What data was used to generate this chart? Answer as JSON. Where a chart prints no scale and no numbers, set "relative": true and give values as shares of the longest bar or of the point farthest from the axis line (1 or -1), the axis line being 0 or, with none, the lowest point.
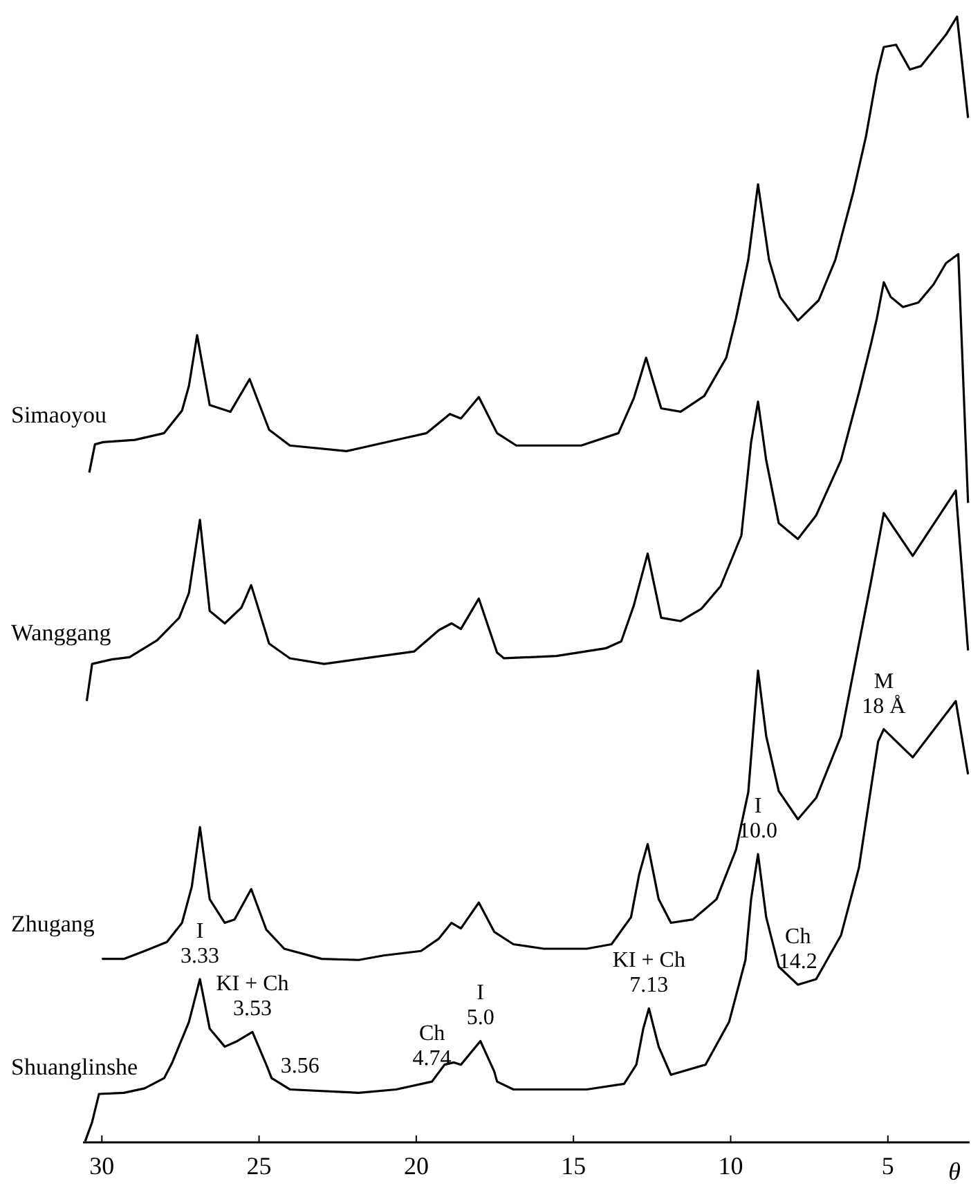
{
  "chart_data": {
    "type": "line",
    "relative": true,
    "xlabel": "θ",
    "xlim": [
      30.6,
      2.4
    ],
    "xticks": [
      30,
      25,
      20,
      15,
      10,
      5
    ],
    "series": [
      {
        "name": "Simaoyou",
        "color": "#000000",
        "x": [
          30.4,
          30.22,
          29.96,
          28.95,
          28.02,
          27.45,
          27.23,
          26.97,
          26.57,
          25.91,
          25.3,
          24.68,
          24.02,
          22.22,
          20.47,
          19.67,
          18.93,
          18.58,
          18.01,
          17.43,
          16.82,
          14.75,
          13.57,
          13.08,
          12.69,
          12.21,
          11.59,
          10.84,
          10.14,
          9.83,
          9.44,
          9.13,
          8.78,
          8.43,
          7.86,
          7.2,
          6.67,
          6.1,
          5.7,
          5.35,
          5.13,
          4.74,
          4.3,
          3.95,
          3.15,
          2.8,
          2.45
        ],
        "values": [
          0.595,
          0.62,
          0.622,
          0.624,
          0.63,
          0.65,
          0.672,
          0.717,
          0.655,
          0.649,
          0.678,
          0.633,
          0.619,
          0.614,
          0.625,
          0.63,
          0.647,
          0.643,
          0.662,
          0.63,
          0.619,
          0.619,
          0.63,
          0.661,
          0.697,
          0.652,
          0.649,
          0.663,
          0.697,
          0.732,
          0.784,
          0.851,
          0.784,
          0.751,
          0.73,
          0.748,
          0.784,
          0.844,
          0.893,
          0.948,
          0.973,
          0.975,
          0.953,
          0.956,
          0.984,
          1.0,
          0.91
        ]
      },
      {
        "name": "Wanggang",
        "color": "#000000",
        "x": [
          30.48,
          30.31,
          29.69,
          29.12,
          28.24,
          27.54,
          27.23,
          26.88,
          26.57,
          26.09,
          25.56,
          25.25,
          24.68,
          24.02,
          22.93,
          20.07,
          19.28,
          18.88,
          18.58,
          18.01,
          17.43,
          17.21,
          15.54,
          13.96,
          13.48,
          13.08,
          12.64,
          12.21,
          11.59,
          10.93,
          10.32,
          9.66,
          9.35,
          9.13,
          8.87,
          8.47,
          7.86,
          7.28,
          6.49,
          5.92,
          5.53,
          5.35,
          5.13,
          4.91,
          4.52,
          4.03,
          3.55,
          3.15,
          2.76,
          2.45
        ],
        "values": [
          0.392,
          0.425,
          0.429,
          0.431,
          0.446,
          0.466,
          0.488,
          0.553,
          0.472,
          0.461,
          0.475,
          0.495,
          0.443,
          0.43,
          0.425,
          0.436,
          0.455,
          0.461,
          0.456,
          0.483,
          0.435,
          0.43,
          0.432,
          0.439,
          0.445,
          0.477,
          0.523,
          0.466,
          0.463,
          0.474,
          0.494,
          0.539,
          0.622,
          0.658,
          0.606,
          0.55,
          0.536,
          0.557,
          0.606,
          0.666,
          0.71,
          0.732,
          0.764,
          0.751,
          0.742,
          0.746,
          0.762,
          0.781,
          0.789,
          0.568
        ]
      },
      {
        "name": "Zhugang",
        "color": "#000000",
        "x": [
          30.0,
          29.3,
          28.64,
          27.93,
          27.45,
          27.14,
          26.88,
          26.57,
          26.09,
          25.78,
          25.25,
          24.77,
          24.2,
          23.01,
          21.83,
          21.04,
          19.85,
          19.28,
          18.88,
          18.58,
          18.01,
          17.52,
          16.91,
          15.94,
          14.58,
          13.79,
          13.17,
          12.91,
          12.64,
          12.29,
          11.9,
          11.2,
          10.45,
          9.83,
          9.44,
          9.13,
          8.87,
          8.47,
          7.86,
          7.28,
          6.49,
          5.92,
          5.53,
          5.13,
          4.21,
          2.84,
          2.45
        ],
        "values": [
          0.163,
          0.163,
          0.17,
          0.178,
          0.195,
          0.227,
          0.28,
          0.216,
          0.195,
          0.198,
          0.225,
          0.189,
          0.172,
          0.163,
          0.162,
          0.166,
          0.17,
          0.181,
          0.195,
          0.19,
          0.213,
          0.187,
          0.176,
          0.172,
          0.172,
          0.176,
          0.2,
          0.238,
          0.265,
          0.216,
          0.195,
          0.198,
          0.216,
          0.26,
          0.311,
          0.419,
          0.361,
          0.312,
          0.287,
          0.306,
          0.361,
          0.443,
          0.499,
          0.559,
          0.521,
          0.579,
          0.437
        ]
      },
      {
        "name": "Shuanglinshe",
        "color": "#000000",
        "x": [
          30.53,
          30.31,
          30.09,
          29.3,
          28.64,
          28.02,
          27.76,
          27.23,
          26.88,
          26.57,
          26.09,
          25.69,
          25.21,
          24.77,
          24.6,
          24.02,
          21.83,
          20.64,
          19.5,
          19.1,
          18.8,
          18.58,
          17.96,
          17.52,
          17.43,
          16.91,
          14.58,
          13.39,
          13.0,
          12.78,
          12.6,
          12.29,
          11.9,
          10.8,
          10.05,
          9.53,
          9.35,
          9.13,
          8.87,
          8.47,
          7.86,
          7.28,
          6.49,
          5.92,
          5.53,
          5.31,
          5.13,
          4.21,
          2.84,
          2.45
        ],
        "values": [
          0.001,
          0.018,
          0.043,
          0.044,
          0.048,
          0.057,
          0.071,
          0.107,
          0.145,
          0.101,
          0.085,
          0.09,
          0.098,
          0.069,
          0.057,
          0.047,
          0.044,
          0.047,
          0.054,
          0.069,
          0.071,
          0.069,
          0.09,
          0.063,
          0.054,
          0.047,
          0.047,
          0.052,
          0.069,
          0.101,
          0.119,
          0.085,
          0.06,
          0.069,
          0.107,
          0.162,
          0.216,
          0.256,
          0.2,
          0.156,
          0.14,
          0.145,
          0.184,
          0.244,
          0.316,
          0.356,
          0.367,
          0.342,
          0.392,
          0.327
        ]
      }
    ],
    "annotations": [
      {
        "text": "I\n3.33",
        "x": 26.88,
        "y": 0.145
      },
      {
        "text": "KI + Ch\n3.53",
        "x": 25.21,
        "y": 0.098
      },
      {
        "text": "3.56",
        "x": 23.7,
        "y": 0.047
      },
      {
        "text": "Ch\n4.74",
        "x": 19.5,
        "y": 0.054
      },
      {
        "text": "I\n5.0",
        "x": 17.96,
        "y": 0.09
      },
      {
        "text": "KI + Ch\n7.13",
        "x": 12.6,
        "y": 0.119
      },
      {
        "text": "I\n10.0",
        "x": 9.13,
        "y": 0.256
      },
      {
        "text": "Ch\n14.2",
        "x": 7.86,
        "y": 0.14
      },
      {
        "text": "M\n18 Å",
        "x": 5.13,
        "y": 0.367
      }
    ]
  }
}
